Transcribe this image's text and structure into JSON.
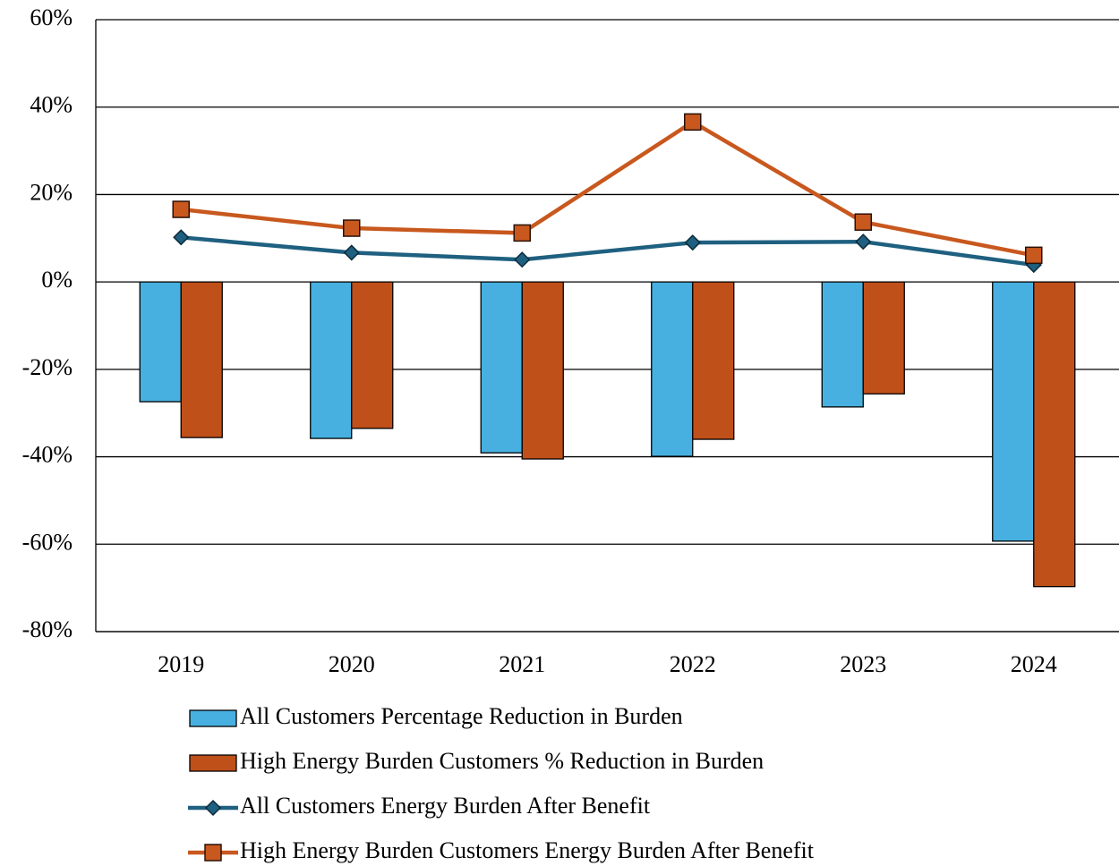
{
  "chart_data": {
    "type": "bar",
    "categories": [
      "2019",
      "2020",
      "2021",
      "2022",
      "2023",
      "2024"
    ],
    "series": [
      {
        "name": "All Customers Percentage Reduction in Burden",
        "type": "bar",
        "color": "#47b0e0",
        "values": [
          -27.4,
          -35.8,
          -39.1,
          -39.9,
          -28.6,
          -59.3
        ]
      },
      {
        "name": "High Energy Burden Customers % Reduction in Burden",
        "type": "bar",
        "color": "#c0501a",
        "values": [
          -35.6,
          -33.5,
          -40.5,
          -36.0,
          -25.6,
          -69.7
        ]
      },
      {
        "name": "All Customers Energy Burden After Benefit",
        "type": "line",
        "marker": "diamond",
        "color": "#1f6080",
        "values": [
          10.2,
          6.7,
          5.1,
          9.0,
          9.2,
          3.9
        ]
      },
      {
        "name": "High Energy Burden Customers Energy Burden After Benefit",
        "type": "line",
        "marker": "square",
        "color": "#c8581e",
        "values": [
          16.6,
          12.3,
          11.2,
          36.6,
          13.7,
          6.1
        ]
      }
    ],
    "ylim": [
      -80,
      60
    ],
    "yticks": [
      {
        "value": -80,
        "label": "-80%"
      },
      {
        "value": -60,
        "label": "-60%"
      },
      {
        "value": -40,
        "label": "-40%"
      },
      {
        "value": -20,
        "label": "-20%"
      },
      {
        "value": 0,
        "label": "0%"
      },
      {
        "value": 20,
        "label": "20%"
      },
      {
        "value": 40,
        "label": "40%"
      },
      {
        "value": 60,
        "label": "60%"
      }
    ],
    "grid": true,
    "legend": "bottom"
  }
}
